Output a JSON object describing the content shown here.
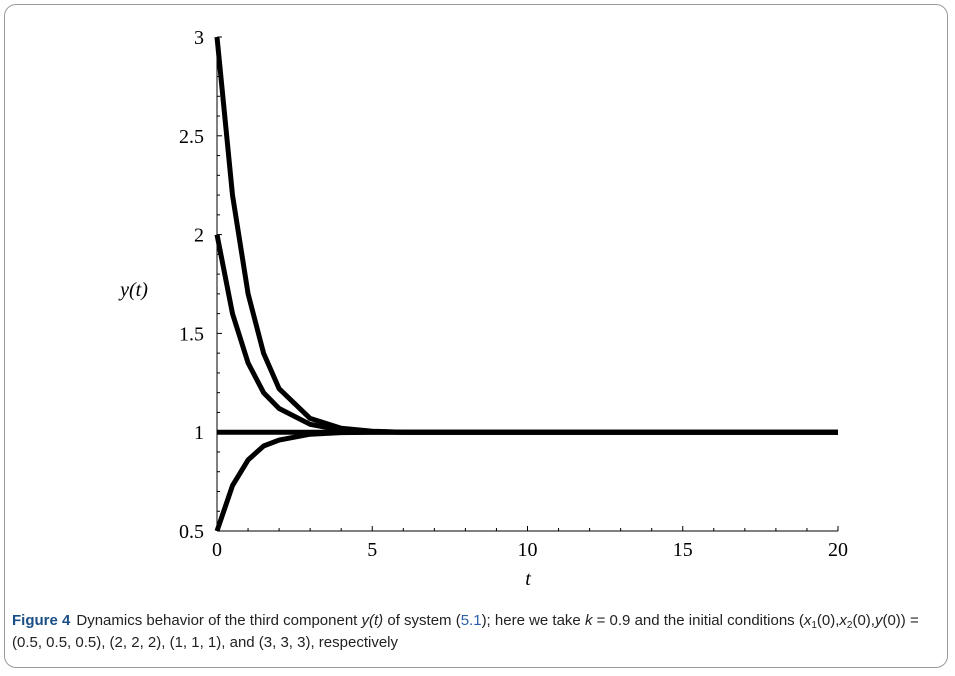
{
  "chart_data": {
    "type": "line",
    "title": "",
    "xlabel": "t",
    "ylabel": "y(t)",
    "xlim": [
      0,
      20
    ],
    "ylim": [
      0.5,
      3
    ],
    "xticks": [
      0,
      5,
      10,
      15,
      20
    ],
    "yticks": [
      0.5,
      1,
      1.5,
      2,
      2.5,
      3
    ],
    "ytick_labels": [
      "0.5",
      "1",
      "1.5",
      "2",
      "2.5",
      "3"
    ],
    "grid": false,
    "line_color": "#000000",
    "series": [
      {
        "x": [
          0,
          0.5,
          1,
          1.5,
          2,
          3,
          4,
          5,
          6,
          8,
          10,
          15,
          20
        ],
        "y": [
          0.5,
          0.73,
          0.86,
          0.93,
          0.96,
          0.99,
          0.998,
          1.0,
          1.0,
          1.0,
          1.0,
          1.0,
          1.0
        ]
      },
      {
        "x": [
          0,
          20
        ],
        "y": [
          1,
          1
        ]
      },
      {
        "x": [
          0,
          0.5,
          1,
          1.5,
          2,
          3,
          4,
          5,
          6,
          8,
          10,
          15,
          20
        ],
        "y": [
          2,
          1.6,
          1.35,
          1.2,
          1.12,
          1.04,
          1.01,
          1.003,
          1.0,
          1.0,
          1.0,
          1.0,
          1.0
        ]
      },
      {
        "x": [
          0,
          0.5,
          1,
          1.5,
          2,
          3,
          4,
          5,
          6,
          8,
          10,
          15,
          20
        ],
        "y": [
          3,
          2.2,
          1.7,
          1.4,
          1.22,
          1.07,
          1.02,
          1.005,
          1.0,
          1.0,
          1.0,
          1.0,
          1.0
        ]
      }
    ]
  },
  "caption": {
    "label": "Figure 4",
    "text_part1": "Dynamics behavior of the third component ",
    "y_t": "y(t)",
    "text_part2": " of system (",
    "ref": "5.1",
    "text_part3": "); here we take ",
    "k_var": "k",
    "text_part4": " = 0.9 and the initial conditions (",
    "x_var": "x",
    "sub1": "1",
    "paren0a": "(0),",
    "sub2": "2",
    "paren0b": "(0),",
    "y_var": "y",
    "text_part5": "(0)) = (0.5, 0.5, 0.5), (2, 2, 2), (1, 1, 1), and (3, 3, 3), respectively"
  }
}
